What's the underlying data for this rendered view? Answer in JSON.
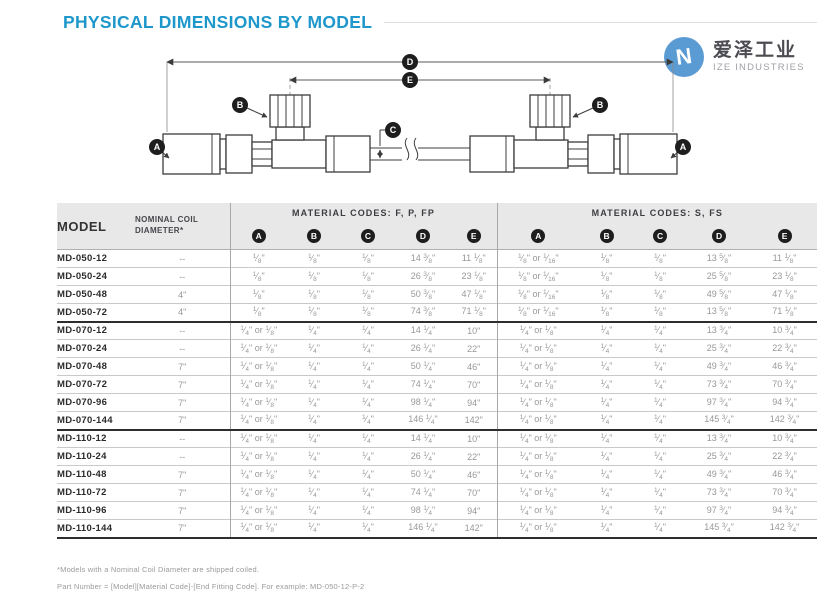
{
  "page": {
    "title": "PHYSICAL DIMENSIONS BY MODEL",
    "footnote1": "*Models with a Nominal Coil Diameter are shipped coiled.",
    "footnote2": "Part Number = [Model][Material Code]-[End Fitting Code]. For example: MD-050-12-P-2"
  },
  "logo": {
    "cn": "爱泽工业",
    "en": "IZE INDUSTRIES",
    "mark_letter": "N",
    "brand_color": "#5b9bd4"
  },
  "diagram": {
    "labels": [
      "A",
      "B",
      "C",
      "D",
      "E"
    ]
  },
  "table": {
    "col_model": "MODEL",
    "col_coil": "NOMINAL COIL DIAMETER*",
    "group1": "MATERIAL CODES: F, P, FP",
    "group2": "MATERIAL CODES: S, FS",
    "dim_cols": [
      "A",
      "B",
      "C",
      "D",
      "E"
    ],
    "rows": [
      {
        "model": "MD-050-12",
        "coil": "--",
        "fpfp": [
          "1/8\"",
          "1/8\"",
          "1/8\"",
          "14 3/8\"",
          "11 1/8\""
        ],
        "sfs": [
          "1/8\" or 1/16\"",
          "1/8\"",
          "1/8\"",
          "13 5/8\"",
          "11 1/8\""
        ]
      },
      {
        "model": "MD-050-24",
        "coil": "--",
        "fpfp": [
          "1/8\"",
          "1/8\"",
          "1/8\"",
          "26 3/8\"",
          "23 1/8\""
        ],
        "sfs": [
          "1/8\" or 1/16\"",
          "1/8\"",
          "1/8\"",
          "25 5/8\"",
          "23 1/8\""
        ]
      },
      {
        "model": "MD-050-48",
        "coil": "4\"",
        "fpfp": [
          "1/8\"",
          "1/8\"",
          "1/8\"",
          "50 3/8\"",
          "47 1/8\""
        ],
        "sfs": [
          "1/8\" or 1/16\"",
          "1/8\"",
          "1/8\"",
          "49 5/8\"",
          "47 1/8\""
        ]
      },
      {
        "model": "MD-050-72",
        "coil": "4\"",
        "fpfp": [
          "1/8\"",
          "1/8\"",
          "1/8\"",
          "74 3/8\"",
          "71 1/8\""
        ],
        "sfs": [
          "1/8\" or 1/16\"",
          "1/8\"",
          "1/8\"",
          "13 5/8\"",
          "71 1/8\""
        ]
      },
      {
        "model": "MD-070-12",
        "coil": "--",
        "group_start": true,
        "fpfp": [
          "1/4\" or 1/8\"",
          "1/4\"",
          "1/4\"",
          "14 1/4\"",
          "10\""
        ],
        "sfs": [
          "1/4\" or 1/8\"",
          "1/4\"",
          "1/4\"",
          "13 3/4\"",
          "10 3/4\""
        ]
      },
      {
        "model": "MD-070-24",
        "coil": "--",
        "fpfp": [
          "1/4\" or 1/8\"",
          "1/4\"",
          "1/4\"",
          "26 1/4\"",
          "22\""
        ],
        "sfs": [
          "1/4\" or 1/8\"",
          "1/4\"",
          "1/4\"",
          "25 3/4\"",
          "22 3/4\""
        ]
      },
      {
        "model": "MD-070-48",
        "coil": "7\"",
        "fpfp": [
          "1/4\" or 1/8\"",
          "1/4\"",
          "1/4\"",
          "50 1/4\"",
          "46\""
        ],
        "sfs": [
          "1/4\" or 1/8\"",
          "1/4\"",
          "1/4\"",
          "49 3/4\"",
          "46 3/4\""
        ]
      },
      {
        "model": "MD-070-72",
        "coil": "7\"",
        "fpfp": [
          "1/4\" or 1/8\"",
          "1/4\"",
          "1/4\"",
          "74 1/4\"",
          "70\""
        ],
        "sfs": [
          "1/4\" or 1/8\"",
          "1/4\"",
          "1/4\"",
          "73 3/4\"",
          "70 3/4\""
        ]
      },
      {
        "model": "MD-070-96",
        "coil": "7\"",
        "fpfp": [
          "1/4\" or 1/8\"",
          "1/4\"",
          "1/4\"",
          "98 1/4\"",
          "94\""
        ],
        "sfs": [
          "1/4\" or 1/8\"",
          "1/4\"",
          "1/4\"",
          "97 3/4\"",
          "94 3/4\""
        ]
      },
      {
        "model": "MD-070-144",
        "coil": "7\"",
        "fpfp": [
          "1/4\" or 1/8\"",
          "1/4\"",
          "1/4\"",
          "146 1/4\"",
          "142\""
        ],
        "sfs": [
          "1/4\" or 1/8\"",
          "1/4\"",
          "1/4\"",
          "145 3/4\"",
          "142 3/4\""
        ]
      },
      {
        "model": "MD-110-12",
        "coil": "--",
        "group_start": true,
        "fpfp": [
          "1/4\" or 1/8\"",
          "1/4\"",
          "1/4\"",
          "14 1/4\"",
          "10\""
        ],
        "sfs": [
          "1/4\" or 1/8\"",
          "1/4\"",
          "1/4\"",
          "13 3/4\"",
          "10 3/4\""
        ]
      },
      {
        "model": "MD-110-24",
        "coil": "--",
        "fpfp": [
          "1/4\" or 1/8\"",
          "1/4\"",
          "1/4\"",
          "26 1/4\"",
          "22\""
        ],
        "sfs": [
          "1/4\" or 1/8\"",
          "1/4\"",
          "1/4\"",
          "25 3/4\"",
          "22 3/4\""
        ]
      },
      {
        "model": "MD-110-48",
        "coil": "7\"",
        "fpfp": [
          "1/4\" or 1/8\"",
          "1/4\"",
          "1/4\"",
          "50 1/4\"",
          "46\""
        ],
        "sfs": [
          "1/4\" or 1/8\"",
          "1/4\"",
          "1/4\"",
          "49 3/4\"",
          "46 3/4\""
        ]
      },
      {
        "model": "MD-110-72",
        "coil": "7\"",
        "fpfp": [
          "1/4\" or 1/8\"",
          "1/4\"",
          "1/4\"",
          "74 1/4\"",
          "70\""
        ],
        "sfs": [
          "1/4\" or 1/8\"",
          "1/4\"",
          "1/4\"",
          "73 3/4\"",
          "70 3/4\""
        ]
      },
      {
        "model": "MD-110-96",
        "coil": "7\"",
        "fpfp": [
          "1/4\" or 1/8\"",
          "1/4\"",
          "1/4\"",
          "98 1/4\"",
          "94\""
        ],
        "sfs": [
          "1/4\" or 1/8\"",
          "1/4\"",
          "1/4\"",
          "97 3/4\"",
          "94 3/4\""
        ]
      },
      {
        "model": "MD-110-144",
        "coil": "7\"",
        "fpfp": [
          "1/4\" or 1/8\"",
          "1/4\"",
          "1/4\"",
          "146 1/4\"",
          "142\""
        ],
        "sfs": [
          "1/4\" or 1/8\"",
          "1/4\"",
          "1/4\"",
          "145 3/4\"",
          "142 3/4\""
        ]
      }
    ]
  }
}
